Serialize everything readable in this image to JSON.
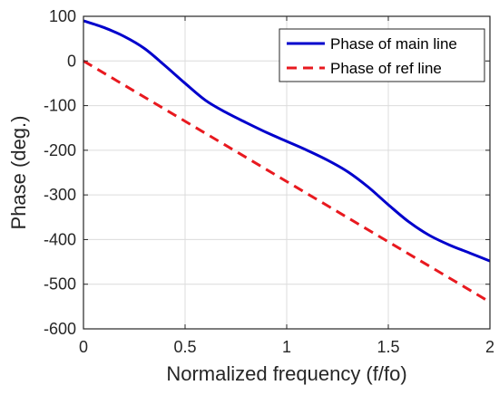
{
  "chart_data": {
    "type": "line",
    "title": "",
    "xlabel": "Normalized frequency (f/fo)",
    "ylabel": "Phase (deg.)",
    "xlim": [
      0,
      2
    ],
    "ylim": [
      -600,
      100
    ],
    "xticks": [
      0,
      0.5,
      1,
      1.5,
      2
    ],
    "xtick_labels": [
      "0",
      "0.5",
      "1",
      "1.5",
      "2"
    ],
    "yticks": [
      100,
      0,
      -100,
      -200,
      -300,
      -400,
      -500,
      -600
    ],
    "ytick_labels": [
      "100",
      "0",
      "-100",
      "-200",
      "-300",
      "-400",
      "-500",
      "-600"
    ],
    "grid": true,
    "legend_position": "top-right",
    "series": [
      {
        "name": "Phase of main line",
        "color": "#0000cc",
        "style": "solid",
        "x": [
          0,
          0.1,
          0.2,
          0.3,
          0.4,
          0.5,
          0.6,
          0.7,
          0.8,
          0.9,
          1.0,
          1.1,
          1.2,
          1.3,
          1.4,
          1.5,
          1.6,
          1.7,
          1.8,
          1.9,
          2.0
        ],
        "y": [
          90,
          75,
          55,
          28,
          -10,
          -50,
          -88,
          -115,
          -138,
          -160,
          -180,
          -200,
          -222,
          -248,
          -282,
          -322,
          -360,
          -390,
          -412,
          -430,
          -448
        ]
      },
      {
        "name": "Phase of ref line",
        "color": "#e8191f",
        "style": "dashed",
        "x": [
          0,
          2
        ],
        "y": [
          0,
          -540
        ]
      }
    ]
  }
}
